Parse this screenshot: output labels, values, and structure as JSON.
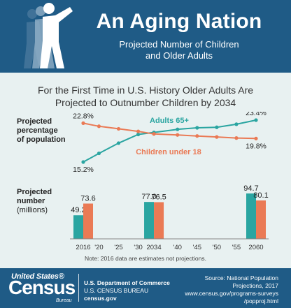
{
  "header": {
    "title": "An Aging Nation",
    "subtitle_line1": "Projected Number of Children",
    "subtitle_line2": "and Older Adults"
  },
  "headline": {
    "line1": "For the First Time in U.S. History Older Adults Are",
    "line2": "Projected to Outnumber Children by 2034"
  },
  "colors": {
    "header_bg": "#1f5b86",
    "adults": "#2aa5a1",
    "children": "#ea7a55",
    "background": "#e8f1f1"
  },
  "chart_data": [
    {
      "type": "line",
      "ylabel_lines": [
        "Projected",
        "percentage",
        "of population"
      ],
      "series": [
        {
          "name": "Adults 65+",
          "x": [
            2016,
            2020,
            2025,
            2030,
            2034,
            2040,
            2045,
            2050,
            2055,
            2060
          ],
          "values": [
            15.2,
            16.9,
            18.9,
            20.6,
            21.0,
            21.6,
            21.9,
            22.0,
            22.6,
            23.4
          ]
        },
        {
          "name": "Children under 18",
          "x": [
            2016,
            2020,
            2025,
            2030,
            2034,
            2040,
            2045,
            2050,
            2055,
            2060
          ],
          "values": [
            22.8,
            22.2,
            21.7,
            21.2,
            20.7,
            20.5,
            20.3,
            20.1,
            19.9,
            19.8
          ]
        }
      ],
      "data_labels": [
        {
          "series": "Adults 65+",
          "x": 2016,
          "text": "15.2%"
        },
        {
          "series": "Adults 65+",
          "x": 2060,
          "text": "23.4%"
        },
        {
          "series": "Children under 18",
          "x": 2016,
          "text": "22.8%"
        },
        {
          "series": "Children under 18",
          "x": 2060,
          "text": "19.8%"
        }
      ],
      "legend_in_plot": true
    },
    {
      "type": "bar",
      "ylabel_lines": [
        "Projected",
        "number"
      ],
      "ylabel_unit": "(millions)",
      "categories": [
        2016,
        2034,
        2060
      ],
      "series": [
        {
          "name": "Adults 65+",
          "values": [
            49.2,
            77.0,
            94.7
          ]
        },
        {
          "name": "Children under 18",
          "values": [
            73.6,
            76.5,
            80.1
          ]
        }
      ],
      "value_labels": [
        [
          "49.2",
          "73.6"
        ],
        [
          "77.0",
          "76.5"
        ],
        [
          "94.7",
          "80.1"
        ]
      ]
    }
  ],
  "x_axis": {
    "ticks": [
      {
        "year": 2016,
        "label": "2016"
      },
      {
        "year": 2020,
        "label": "'20"
      },
      {
        "year": 2025,
        "label": "'25"
      },
      {
        "year": 2030,
        "label": "'30"
      },
      {
        "year": 2034,
        "label": "2034"
      },
      {
        "year": 2040,
        "label": "'40"
      },
      {
        "year": 2045,
        "label": "'45"
      },
      {
        "year": 2050,
        "label": "'50"
      },
      {
        "year": 2055,
        "label": "'55"
      },
      {
        "year": 2060,
        "label": "2060"
      }
    ]
  },
  "note": "Note: 2016 data are estimates not projections.",
  "footer": {
    "logo_top": "United States®",
    "logo_main": "Census",
    "logo_bureau": "Bureau",
    "dept_line1": "U.S. Department of Commerce",
    "dept_line2": "U.S. CENSUS BUREAU",
    "dept_line3": "census.gov",
    "source_line1": "Source: National Population",
    "source_line2": "Projections, 2017",
    "source_line3": "www.census.gov/programs-surveys",
    "source_line4": "/popproj.html"
  }
}
